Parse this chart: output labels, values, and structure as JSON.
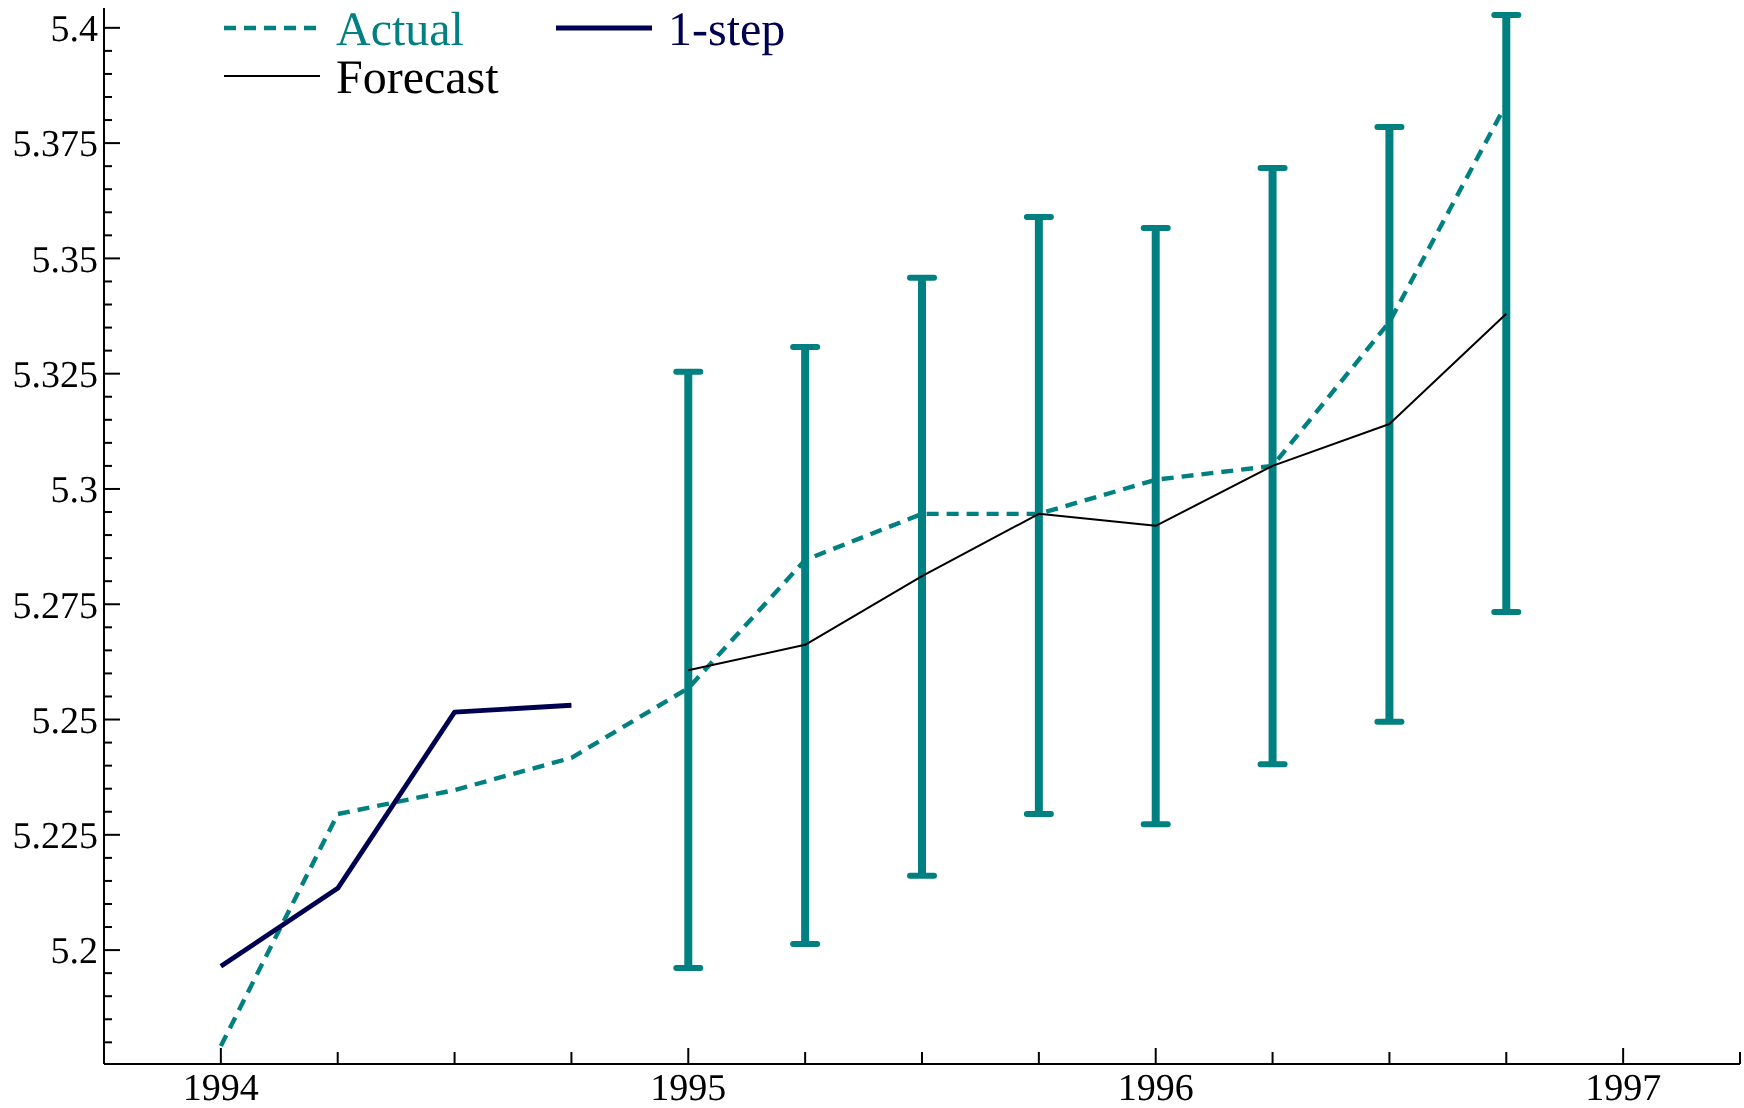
{
  "chart_data": {
    "type": "line",
    "x": [
      1994,
      1994.25,
      1994.5,
      1994.75,
      1995,
      1995.25,
      1995.5,
      1995.75,
      1996,
      1996.25,
      1996.5,
      1996.75
    ],
    "series": [
      {
        "name": "Actual",
        "color": "#008080",
        "line_style": "dashed",
        "values": [
          5.1792,
          5.2295,
          5.2347,
          5.2417,
          5.2568,
          5.2846,
          5.2946,
          5.2946,
          5.302,
          5.305,
          5.3362,
          5.3835
        ],
        "errors": [
          null,
          null,
          null,
          null,
          [
            5.1961,
            5.3254
          ],
          [
            5.2013,
            5.3308
          ],
          [
            5.2161,
            5.3458
          ],
          [
            5.2295,
            5.359
          ],
          [
            5.2273,
            5.3566
          ],
          [
            5.2403,
            5.3696
          ],
          [
            5.2495,
            5.3785
          ],
          [
            5.2733,
            5.4028
          ]
        ]
      },
      {
        "name": "1-step",
        "color": "#000050",
        "line_style": "solid",
        "x": [
          1994,
          1994.25,
          1994.5,
          1994.75
        ],
        "values": [
          5.1965,
          5.2134,
          5.2516,
          5.2531
        ]
      },
      {
        "name": "Forecast",
        "color": "#000000",
        "line_style": "solid",
        "x": [
          1995,
          1995.25,
          1995.5,
          1995.75,
          1996,
          1996.25,
          1996.5,
          1996.75
        ],
        "values": [
          5.2607,
          5.2662,
          5.2811,
          5.2946,
          5.292,
          5.305,
          5.3141,
          5.338
        ]
      }
    ],
    "xlim": [
      1993.75,
      1997.25
    ],
    "xticks": [
      1994,
      {
        "value": 1994.25,
        "label": null
      },
      {
        "value": 1994.5,
        "label": null
      },
      {
        "value": 1994.75,
        "label": null
      },
      1995,
      {
        "value": 1995.25,
        "label": null
      },
      {
        "value": 1995.5,
        "label": null
      },
      {
        "value": 1995.75,
        "label": null
      },
      1996,
      {
        "value": 1996.25,
        "label": null
      },
      {
        "value": 1996.5,
        "label": null
      },
      {
        "value": 1996.75,
        "label": null
      },
      1997,
      {
        "value": 1997.25,
        "label": null
      }
    ],
    "ylim": [
      5.1753,
      5.4043
    ],
    "yticks": [
      {
        "value": 5.18,
        "label": null
      },
      {
        "value": 5.185,
        "label": null
      },
      {
        "value": 5.19,
        "label": null
      },
      {
        "value": 5.195,
        "label": null
      },
      5.2,
      {
        "value": 5.205,
        "label": null
      },
      {
        "value": 5.21,
        "label": null
      },
      {
        "value": 5.215,
        "label": null
      },
      {
        "value": 5.22,
        "label": null
      },
      5.225,
      {
        "value": 5.23,
        "label": null
      },
      {
        "value": 5.235,
        "label": null
      },
      {
        "value": 5.24,
        "label": null
      },
      {
        "value": 5.245,
        "label": null
      },
      5.25,
      {
        "value": 5.255,
        "label": null
      },
      {
        "value": 5.26,
        "label": null
      },
      {
        "value": 5.265,
        "label": null
      },
      {
        "value": 5.27,
        "label": null
      },
      5.275,
      {
        "value": 5.28,
        "label": null
      },
      {
        "value": 5.285,
        "label": null
      },
      {
        "value": 5.29,
        "label": null
      },
      {
        "value": 5.295,
        "label": null
      },
      5.3,
      {
        "value": 5.305,
        "label": null
      },
      {
        "value": 5.31,
        "label": null
      },
      {
        "value": 5.315,
        "label": null
      },
      {
        "value": 5.32,
        "label": null
      },
      5.325,
      {
        "value": 5.33,
        "label": null
      },
      {
        "value": 5.335,
        "label": null
      },
      {
        "value": 5.34,
        "label": null
      },
      {
        "value": 5.345,
        "label": null
      },
      5.35,
      {
        "value": 5.355,
        "label": null
      },
      {
        "value": 5.36,
        "label": null
      },
      {
        "value": 5.365,
        "label": null
      },
      {
        "value": 5.37,
        "label": null
      },
      5.375,
      {
        "value": 5.38,
        "label": null
      },
      {
        "value": 5.385,
        "label": null
      },
      {
        "value": 5.39,
        "label": null
      },
      {
        "value": 5.395,
        "label": null
      },
      5.4
    ],
    "grid": false,
    "legend": "top left",
    "marker": "none"
  }
}
